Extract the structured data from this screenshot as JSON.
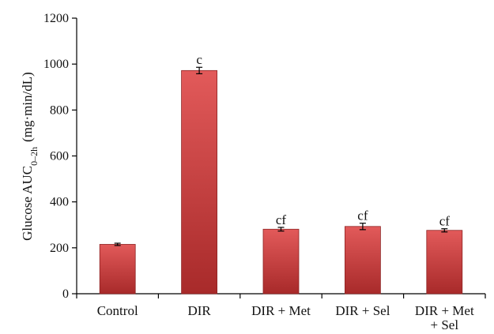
{
  "chart_data": {
    "type": "bar",
    "categories": [
      [
        "Control"
      ],
      [
        "DIR"
      ],
      [
        "DIR + Met"
      ],
      [
        "DIR + Sel"
      ],
      [
        "DIR + Met",
        "+ Sel"
      ]
    ],
    "values": [
      215,
      972,
      281,
      293,
      276
    ],
    "errors": [
      5,
      14,
      8,
      14,
      7
    ],
    "significance_labels": [
      "",
      "c",
      "cf",
      "cf",
      "cf"
    ],
    "ylabel": {
      "main": "Glucose AUC",
      "subscript": "0–2h",
      "suffix": "(mg·min/dL)"
    },
    "ylim": [
      0,
      1200
    ],
    "yticks": [
      "0",
      "200",
      "400",
      "600",
      "800",
      "1000",
      "1200"
    ],
    "grid": false,
    "bar_color_light": "#e25a5a",
    "bar_color_dark": "#a82a2a",
    "bar_color_edge": "#8e2424"
  }
}
